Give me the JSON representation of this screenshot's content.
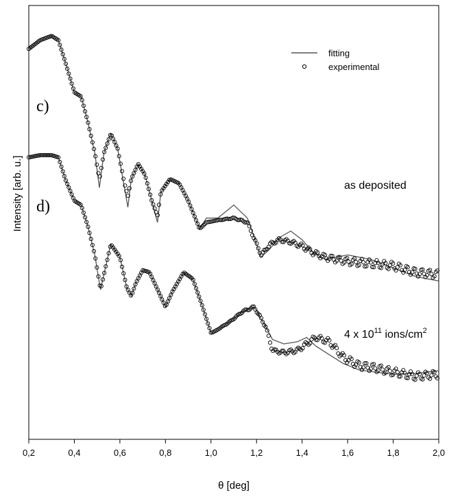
{
  "chart_data": {
    "type": "scatter",
    "xlabel": "θ [deg]",
    "ylabel": "Intensity [arb. u.]",
    "xlim": [
      0.2,
      2.0
    ],
    "ylim": [
      0,
      100
    ],
    "x_ticks": [
      "0,2",
      "0,4",
      "0,6",
      "0,8",
      "1,0",
      "1,2",
      "1,4",
      "1,6",
      "1,8",
      "2,0"
    ],
    "grid": false,
    "legend": {
      "position": "top-right",
      "entries": [
        {
          "label": "fitting",
          "marker": "line"
        },
        {
          "label": "experimental",
          "marker": "open-circle"
        }
      ]
    },
    "panel_labels": [
      "c)",
      "d)"
    ],
    "annotations": [
      {
        "text": "as deposited",
        "panel": "c)"
      },
      {
        "text_main": "4 x 10",
        "text_sup": "11",
        "text_tail": " ions/cm",
        "text_sup2": "2",
        "panel": "d)"
      }
    ],
    "series": [
      {
        "panel": "c)",
        "fitting": {
          "x": [
            0.2,
            0.25,
            0.3,
            0.33,
            0.36,
            0.4,
            0.43,
            0.46,
            0.49,
            0.51,
            0.53,
            0.56,
            0.59,
            0.62,
            0.635,
            0.65,
            0.68,
            0.71,
            0.74,
            0.765,
            0.78,
            0.82,
            0.86,
            0.9,
            0.95,
            0.98,
            1.03,
            1.1,
            1.16,
            1.22,
            1.26,
            1.3,
            1.35,
            1.4,
            1.45,
            1.5,
            1.55,
            1.6,
            1.7,
            1.8,
            1.9,
            2.0
          ],
          "y": [
            90,
            92,
            93,
            92,
            87,
            80,
            79,
            73,
            66,
            58,
            66,
            70.5,
            67,
            58,
            53.5,
            60,
            63.5,
            61,
            55,
            50,
            57,
            60,
            59,
            55,
            48.5,
            51,
            51,
            54,
            51,
            42,
            44,
            46.5,
            48,
            46,
            43,
            41.5,
            42,
            42.5,
            41.5,
            39.5,
            37.5,
            36.5
          ]
        },
        "experimental": {
          "x": [
            0.2,
            0.25,
            0.3,
            0.33,
            0.36,
            0.4,
            0.43,
            0.46,
            0.49,
            0.51,
            0.53,
            0.56,
            0.59,
            0.62,
            0.635,
            0.65,
            0.68,
            0.71,
            0.74,
            0.765,
            0.78,
            0.82,
            0.86,
            0.9,
            0.95,
            0.98,
            1.03,
            1.1,
            1.16,
            1.22,
            1.26,
            1.3,
            1.35,
            1.4,
            1.45,
            1.5,
            1.55,
            1.6,
            1.7,
            1.8,
            1.9,
            2.0
          ],
          "y": [
            90,
            92,
            93,
            92,
            87,
            80,
            79,
            73,
            66,
            60,
            66,
            70.5,
            67,
            59,
            56,
            60,
            63.5,
            61,
            55,
            51.5,
            57,
            60,
            59,
            55,
            48.5,
            50,
            50.5,
            51,
            50,
            42.5,
            45,
            46,
            45.5,
            44.5,
            43,
            42,
            41.5,
            41,
            40.5,
            40,
            38.5,
            38
          ]
        }
      },
      {
        "panel": "d)",
        "fitting": {
          "x": [
            0.2,
            0.25,
            0.3,
            0.33,
            0.36,
            0.4,
            0.43,
            0.46,
            0.49,
            0.515,
            0.53,
            0.56,
            0.6,
            0.63,
            0.65,
            0.67,
            0.7,
            0.73,
            0.77,
            0.8,
            0.83,
            0.88,
            0.92,
            0.96,
            1.0,
            1.02,
            1.08,
            1.14,
            1.19,
            1.24,
            1.27,
            1.32,
            1.38,
            1.42,
            1.46,
            1.52,
            1.58,
            1.65,
            1.72,
            1.8,
            1.9,
            2.0
          ],
          "y": [
            65,
            65.5,
            65.5,
            65,
            60,
            55,
            54,
            49,
            42.5,
            34.5,
            38,
            45,
            42,
            35,
            33,
            36,
            39,
            38.5,
            34,
            30.5,
            34,
            38.5,
            37,
            31,
            24.5,
            25,
            27,
            29.5,
            30.5,
            26,
            23,
            22,
            22.5,
            23.5,
            21.5,
            19.5,
            17.5,
            16,
            15.5,
            15,
            15.2,
            15.8
          ]
        },
        "experimental": {
          "x": [
            0.2,
            0.25,
            0.3,
            0.33,
            0.36,
            0.4,
            0.43,
            0.46,
            0.49,
            0.515,
            0.53,
            0.56,
            0.6,
            0.63,
            0.65,
            0.67,
            0.7,
            0.73,
            0.77,
            0.8,
            0.83,
            0.88,
            0.92,
            0.96,
            1.0,
            1.02,
            1.08,
            1.14,
            1.19,
            1.24,
            1.27,
            1.32,
            1.38,
            1.42,
            1.46,
            1.52,
            1.58,
            1.65,
            1.72,
            1.8,
            1.9,
            2.0
          ],
          "y": [
            65,
            65.5,
            65.5,
            65,
            60,
            55,
            54,
            49,
            42.5,
            34.5,
            38,
            45,
            42,
            35,
            33,
            36,
            39,
            38.5,
            34,
            30.5,
            34,
            38.5,
            37,
            31,
            24.5,
            25,
            27,
            29.5,
            30.5,
            26,
            20.5,
            20,
            20.5,
            22,
            23.5,
            22.5,
            19,
            17,
            16.5,
            15.5,
            14.5,
            15
          ]
        }
      }
    ]
  }
}
